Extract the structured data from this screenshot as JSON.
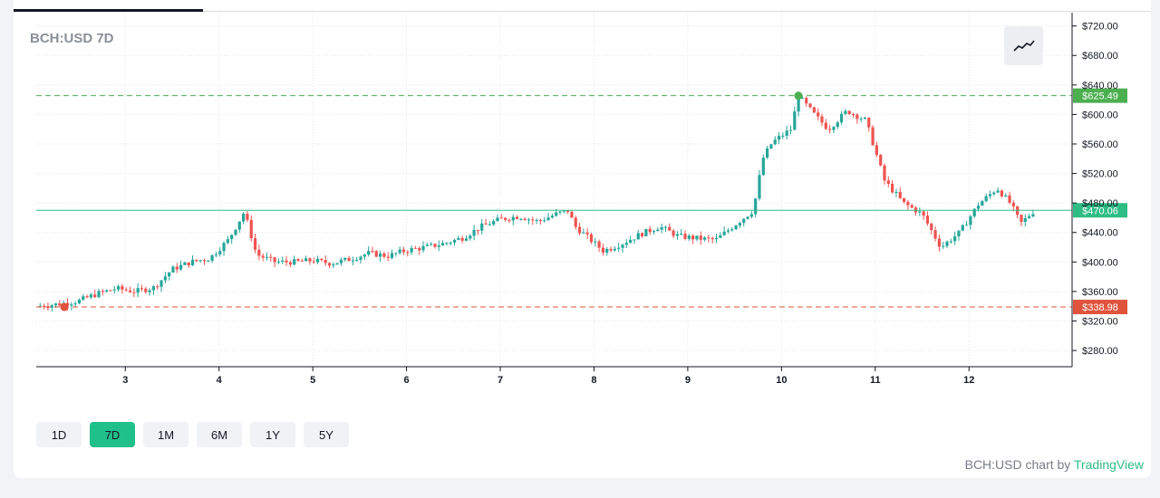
{
  "colors": {
    "up": "#26a69a",
    "down": "#ef5350",
    "current_line": "#2ebd85",
    "high_line": "#4caf50",
    "low_line": "#e0533d",
    "tv_brand": "#2ebd85"
  },
  "header": {
    "title": "BCH:USD 7D"
  },
  "style_button": {
    "icon": "line-chart-icon"
  },
  "price_tags": {
    "high": "$625.49",
    "current": "$470.06",
    "low": "$338.98"
  },
  "ranges": [
    {
      "label": "1D",
      "active": false
    },
    {
      "label": "7D",
      "active": true
    },
    {
      "label": "1M",
      "active": false
    },
    {
      "label": "6M",
      "active": false
    },
    {
      "label": "1Y",
      "active": false
    },
    {
      "label": "5Y",
      "active": false
    }
  ],
  "footer": {
    "prefix": "BCH:USD chart by ",
    "brand": "TradingView"
  },
  "chart_data": {
    "type": "candlestick",
    "title": "BCH:USD 7D",
    "x_ticks": [
      "3",
      "4",
      "5",
      "6",
      "7",
      "8",
      "9",
      "10",
      "11",
      "12"
    ],
    "x_range": [
      2.05,
      13.1
    ],
    "y_ticks": [
      "$280.00",
      "$320.00",
      "$360.00",
      "$400.00",
      "$440.00",
      "$480.00",
      "$520.00",
      "$560.00",
      "$600.00",
      "$640.00",
      "$680.00",
      "$720.00"
    ],
    "y_range": [
      258,
      738
    ],
    "current_price": 470.06,
    "period_high": 625.49,
    "period_low": 338.98,
    "high_marker_day": 10.18,
    "low_marker_day": 2.35,
    "close_path": [
      [
        2.05,
        340
      ],
      [
        2.3,
        343
      ],
      [
        2.5,
        347
      ],
      [
        2.7,
        357
      ],
      [
        2.9,
        364
      ],
      [
        3.1,
        360
      ],
      [
        3.3,
        365
      ],
      [
        3.5,
        390
      ],
      [
        3.7,
        400
      ],
      [
        3.9,
        405
      ],
      [
        4.1,
        430
      ],
      [
        4.27,
        468
      ],
      [
        4.4,
        410
      ],
      [
        4.6,
        400
      ],
      [
        4.8,
        400
      ],
      [
        5.0,
        402
      ],
      [
        5.2,
        398
      ],
      [
        5.4,
        404
      ],
      [
        5.6,
        412
      ],
      [
        5.8,
        408
      ],
      [
        6.0,
        416
      ],
      [
        6.2,
        420
      ],
      [
        6.4,
        425
      ],
      [
        6.6,
        433
      ],
      [
        6.8,
        448
      ],
      [
        7.0,
        458
      ],
      [
        7.2,
        462
      ],
      [
        7.4,
        455
      ],
      [
        7.6,
        465
      ],
      [
        7.72,
        470
      ],
      [
        7.8,
        448
      ],
      [
        8.1,
        415
      ],
      [
        8.3,
        425
      ],
      [
        8.5,
        438
      ],
      [
        8.7,
        448
      ],
      [
        8.9,
        435
      ],
      [
        9.1,
        432
      ],
      [
        9.3,
        430
      ],
      [
        9.45,
        445
      ],
      [
        9.6,
        460
      ],
      [
        9.7,
        470
      ],
      [
        9.8,
        540
      ],
      [
        9.9,
        562
      ],
      [
        10.1,
        580
      ],
      [
        10.18,
        625
      ],
      [
        10.35,
        600
      ],
      [
        10.5,
        580
      ],
      [
        10.7,
        605
      ],
      [
        10.9,
        592
      ],
      [
        11.1,
        510
      ],
      [
        11.3,
        480
      ],
      [
        11.5,
        465
      ],
      [
        11.7,
        420
      ],
      [
        11.9,
        440
      ],
      [
        12.1,
        478
      ],
      [
        12.3,
        500
      ],
      [
        12.45,
        478
      ],
      [
        12.55,
        452
      ],
      [
        12.7,
        470
      ]
    ]
  }
}
